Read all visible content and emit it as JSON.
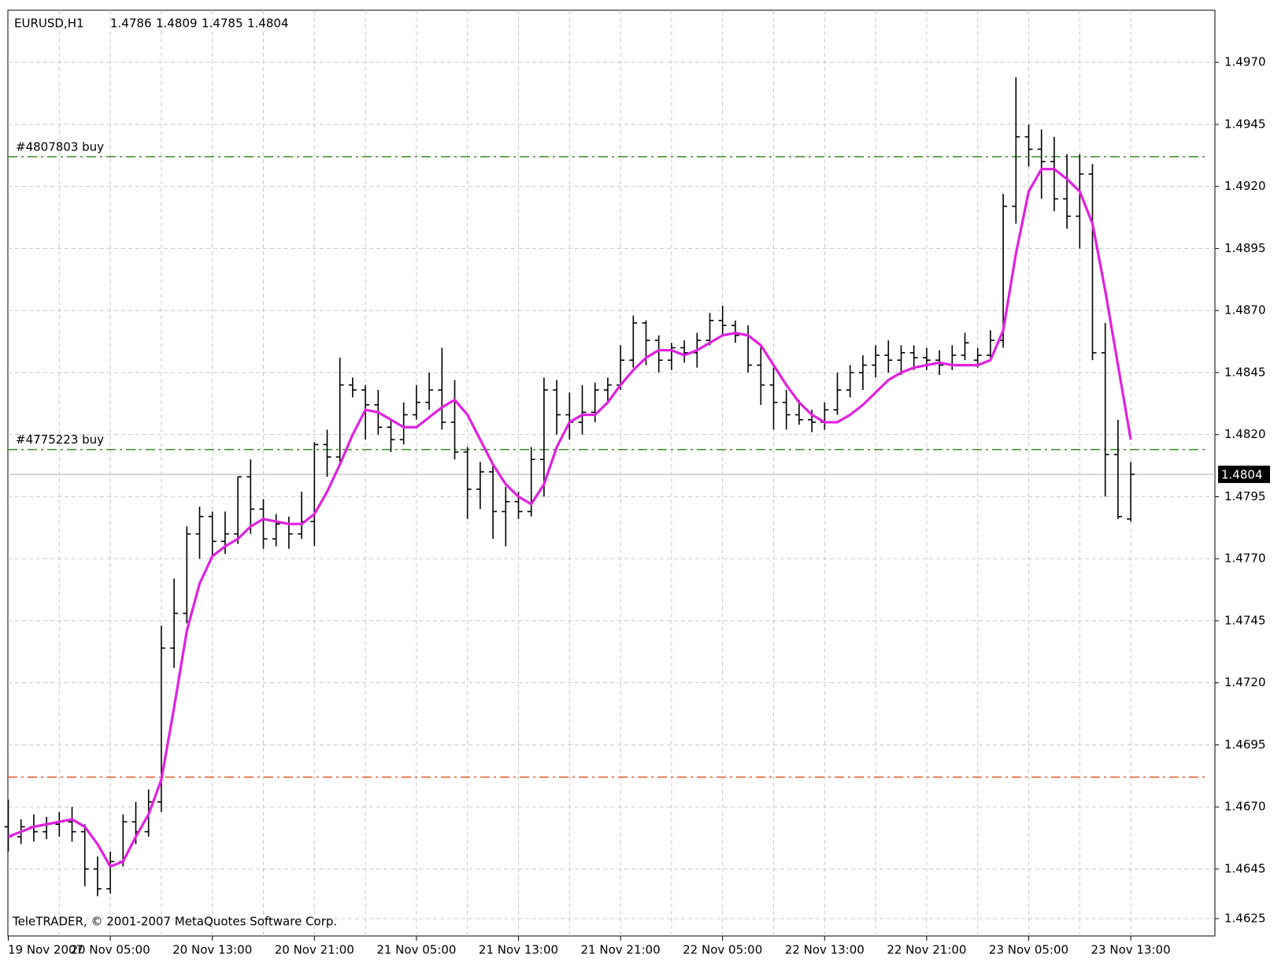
{
  "chart_data": {
    "type": "ohlc",
    "title": "EURUSD,H1",
    "footer": "TeleTRADER, © 2001-2007 MetaQuotes Software Corp.",
    "categories": [
      "19 Nov 2007",
      null,
      null,
      null,
      null,
      null,
      null,
      null,
      "20 Nov 05:00",
      null,
      null,
      null,
      null,
      null,
      null,
      null,
      "20 Nov 13:00",
      null,
      null,
      null,
      null,
      null,
      null,
      null,
      "20 Nov 21:00",
      null,
      null,
      null,
      null,
      null,
      null,
      null,
      "21 Nov 05:00",
      null,
      null,
      null,
      null,
      null,
      null,
      null,
      "21 Nov 13:00",
      null,
      null,
      null,
      null,
      null,
      null,
      null,
      "21 Nov 21:00",
      null,
      null,
      null,
      null,
      null,
      null,
      null,
      "22 Nov 05:00",
      null,
      null,
      null,
      null,
      null,
      null,
      null,
      "22 Nov 13:00",
      null,
      null,
      null,
      null,
      null,
      null,
      null,
      "22 Nov 21:00",
      null,
      null,
      null,
      null,
      null,
      null,
      null,
      "23 Nov 05:00",
      null,
      null,
      null,
      null,
      null,
      null,
      null,
      "23 Nov 13:00"
    ],
    "open": [
      1.4662,
      1.4658,
      1.4662,
      1.466,
      1.4663,
      1.4664,
      1.466,
      1.4645,
      1.4637,
      1.4648,
      1.4664,
      1.466,
      1.4672,
      1.4734,
      1.4748,
      1.478,
      1.4787,
      1.4777,
      1.478,
      1.4803,
      1.479,
      1.4778,
      1.4784,
      1.478,
      1.4785,
      1.4816,
      1.4811,
      1.484,
      1.4838,
      1.4832,
      1.4823,
      1.4818,
      1.4828,
      1.4833,
      1.4838,
      1.4825,
      1.4813,
      1.4798,
      1.4805,
      1.4789,
      1.4793,
      1.4789,
      1.481,
      1.4838,
      1.4828,
      1.4825,
      1.4829,
      1.4838,
      1.484,
      1.485,
      1.4865,
      1.4858,
      1.485,
      1.4855,
      1.4853,
      1.4858,
      1.4866,
      1.4864,
      1.486,
      1.4848,
      1.484,
      1.4833,
      1.4828,
      1.4826,
      1.4825,
      1.483,
      1.4838,
      1.4845,
      1.4848,
      1.4852,
      1.485,
      1.4853,
      1.4851,
      1.485,
      1.4848,
      1.4852,
      1.485,
      1.4852,
      1.4858,
      1.4912,
      1.494,
      1.4935,
      1.493,
      1.4915,
      1.4908,
      1.4925,
      1.4853,
      1.4812,
      1.4786
    ],
    "high": [
      1.4673,
      1.4665,
      1.4667,
      1.4666,
      1.4668,
      1.467,
      1.4663,
      1.465,
      1.4652,
      1.4667,
      1.4672,
      1.4677,
      1.4743,
      1.4762,
      1.4783,
      1.4791,
      1.4789,
      1.4789,
      1.4803,
      1.481,
      1.4794,
      1.4788,
      1.4787,
      1.4797,
      1.4817,
      1.4822,
      1.4851,
      1.4843,
      1.484,
      1.4838,
      1.4826,
      1.4833,
      1.484,
      1.4845,
      1.4855,
      1.4842,
      1.4815,
      1.4809,
      1.4808,
      1.4799,
      1.4797,
      1.4815,
      1.4843,
      1.4842,
      1.4837,
      1.484,
      1.4841,
      1.4843,
      1.4856,
      1.4868,
      1.4866,
      1.486,
      1.4857,
      1.4858,
      1.4861,
      1.4869,
      1.4872,
      1.4866,
      1.4864,
      1.4856,
      1.4847,
      1.4838,
      1.4834,
      1.483,
      1.4833,
      1.4845,
      1.4848,
      1.4852,
      1.4856,
      1.4858,
      1.4856,
      1.4856,
      1.4855,
      1.4854,
      1.4856,
      1.4861,
      1.4855,
      1.4862,
      1.4917,
      1.4964,
      1.4945,
      1.4943,
      1.494,
      1.4933,
      1.4933,
      1.4929,
      1.4865,
      1.4826,
      1.4809
    ],
    "low": [
      1.4652,
      1.4655,
      1.4656,
      1.4657,
      1.4658,
      1.4656,
      1.4638,
      1.4634,
      1.4635,
      1.4646,
      1.4655,
      1.4658,
      1.4668,
      1.4726,
      1.4744,
      1.477,
      1.4771,
      1.4772,
      1.4776,
      1.478,
      1.4774,
      1.4775,
      1.4774,
      1.4778,
      1.4775,
      1.4803,
      1.4809,
      1.4835,
      1.4818,
      1.482,
      1.4813,
      1.4816,
      1.4826,
      1.483,
      1.4822,
      1.481,
      1.4786,
      1.479,
      1.4778,
      1.4775,
      1.4786,
      1.4787,
      1.4795,
      1.482,
      1.4818,
      1.482,
      1.4825,
      1.4833,
      1.4838,
      1.4847,
      1.4848,
      1.4845,
      1.4846,
      1.4849,
      1.4847,
      1.4856,
      1.486,
      1.4857,
      1.4845,
      1.4832,
      1.4822,
      1.4822,
      1.4824,
      1.4821,
      1.4822,
      1.4828,
      1.4835,
      1.4838,
      1.4843,
      1.4845,
      1.4844,
      1.4846,
      1.4846,
      1.4844,
      1.4846,
      1.485,
      1.4847,
      1.485,
      1.4855,
      1.4905,
      1.4928,
      1.4915,
      1.491,
      1.4903,
      1.4895,
      1.485,
      1.4795,
      1.4786,
      1.4785
    ],
    "close": [
      1.4658,
      1.4662,
      1.466,
      1.4663,
      1.4664,
      1.466,
      1.4645,
      1.4637,
      1.4648,
      1.4664,
      1.466,
      1.4672,
      1.4734,
      1.4748,
      1.478,
      1.4787,
      1.4777,
      1.478,
      1.4803,
      1.479,
      1.4778,
      1.4784,
      1.478,
      1.4785,
      1.4816,
      1.4811,
      1.484,
      1.4838,
      1.4832,
      1.4823,
      1.4818,
      1.4828,
      1.4833,
      1.4838,
      1.4825,
      1.4813,
      1.4798,
      1.4805,
      1.4789,
      1.4793,
      1.4789,
      1.481,
      1.4838,
      1.4828,
      1.4825,
      1.4829,
      1.4838,
      1.484,
      1.485,
      1.4865,
      1.4858,
      1.485,
      1.4855,
      1.4853,
      1.4858,
      1.4866,
      1.4864,
      1.486,
      1.4848,
      1.484,
      1.4833,
      1.4828,
      1.4826,
      1.4825,
      1.483,
      1.4838,
      1.4845,
      1.4848,
      1.4852,
      1.485,
      1.4853,
      1.4851,
      1.485,
      1.4848,
      1.4852,
      1.4857,
      1.4852,
      1.4858,
      1.4912,
      1.494,
      1.4935,
      1.493,
      1.4915,
      1.4908,
      1.4925,
      1.4853,
      1.4812,
      1.4787,
      1.4804
    ],
    "color": "#000000",
    "ma": {
      "color": "#e020e0",
      "values": [
        1.4658,
        1.466,
        1.4662,
        1.4663,
        1.4664,
        1.4665,
        1.4662,
        1.4655,
        1.4646,
        1.4648,
        1.4658,
        1.4667,
        1.4681,
        1.471,
        1.4741,
        1.476,
        1.4771,
        1.4775,
        1.4778,
        1.4783,
        1.4786,
        1.4785,
        1.4784,
        1.4784,
        1.4788,
        1.4797,
        1.4808,
        1.482,
        1.483,
        1.4829,
        1.4826,
        1.4823,
        1.4823,
        1.4827,
        1.4831,
        1.4834,
        1.4828,
        1.4818,
        1.4808,
        1.48,
        1.4795,
        1.4792,
        1.48,
        1.4815,
        1.4825,
        1.4828,
        1.4828,
        1.4833,
        1.484,
        1.4846,
        1.4851,
        1.4854,
        1.4854,
        1.4852,
        1.4854,
        1.4857,
        1.486,
        1.4861,
        1.486,
        1.4856,
        1.4848,
        1.484,
        1.4833,
        1.4828,
        1.4825,
        1.4825,
        1.4828,
        1.4832,
        1.4837,
        1.4842,
        1.4845,
        1.4847,
        1.4848,
        1.4849,
        1.4848,
        1.4848,
        1.4848,
        1.485,
        1.4862,
        1.4893,
        1.4918,
        1.4927,
        1.4927,
        1.4923,
        1.4918,
        1.4905,
        1.4878,
        1.4848,
        1.4818
      ]
    },
    "levels": [
      {
        "label": "#4807803 buy",
        "value": 1.4932,
        "color": "#3a8a2a"
      },
      {
        "label": "#4775223 buy",
        "value": 1.4814,
        "color": "#3a8a2a"
      },
      {
        "value": 1.4682,
        "color": "#e05a28"
      }
    ],
    "bid": 1.4804,
    "ylim": [
      1.4618,
      1.4991
    ],
    "yticks": [
      {
        "value": 1.497,
        "label": "1.4970"
      },
      1.4945,
      {
        "value": 1.492,
        "label": "1.4920"
      },
      1.4895,
      {
        "value": 1.487,
        "label": "1.4870"
      },
      1.4845,
      {
        "value": 1.482,
        "label": "1.4820"
      },
      1.4795,
      {
        "value": 1.477,
        "label": "1.4770"
      },
      1.4745,
      {
        "value": 1.472,
        "label": "1.4720"
      },
      1.4695,
      {
        "value": 1.467,
        "label": "1.4670"
      },
      1.4645,
      1.4625
    ],
    "grid": true
  }
}
